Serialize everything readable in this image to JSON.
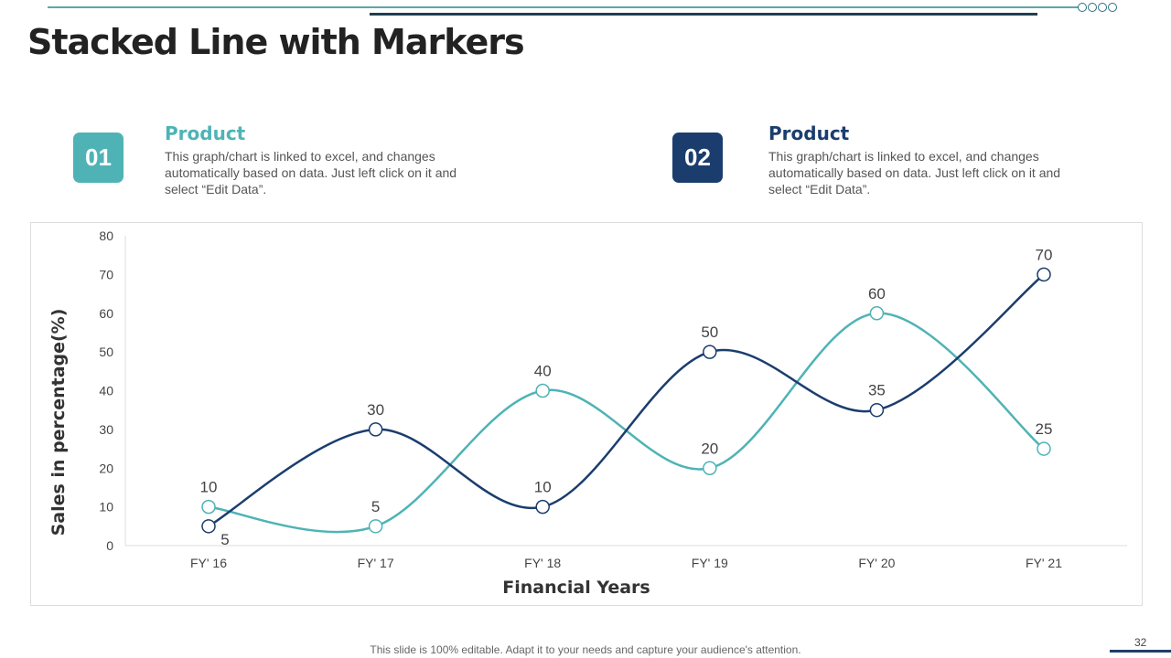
{
  "title": "Stacked Line with Markers",
  "cards": [
    {
      "num": "01",
      "title": "Product",
      "desc": "This graph/chart is linked to excel, and changes automatically based on data. Just left click on it and select “Edit Data”.",
      "color": "#4fb3b5"
    },
    {
      "num": "02",
      "title": "Product",
      "desc": "This graph/chart is linked to excel, and changes automatically based on data. Just left click on it and select “Edit Data”.",
      "color": "#1b3d6e"
    }
  ],
  "footer": "This slide is 100% editable. Adapt it to your needs and capture your audience's attention.",
  "page_number": "32",
  "chart_data": {
    "type": "line",
    "smooth": true,
    "markers": true,
    "categories": [
      "FY' 16",
      "FY' 17",
      "FY' 18",
      "FY' 19",
      "FY' 20",
      "FY' 21"
    ],
    "series": [
      {
        "values": [
          10,
          5,
          40,
          20,
          60,
          25
        ],
        "color": "#4fb3b5"
      },
      {
        "values": [
          5,
          30,
          10,
          50,
          35,
          70
        ],
        "color": "#1b3d6e"
      }
    ],
    "xlabel": "Financial Years",
    "ylabel": "Sales in percentage(%)",
    "ylim": [
      0,
      80
    ],
    "yticks": [
      0,
      10,
      20,
      30,
      40,
      50,
      60,
      70,
      80
    ],
    "grid": false,
    "data_labels": true
  }
}
